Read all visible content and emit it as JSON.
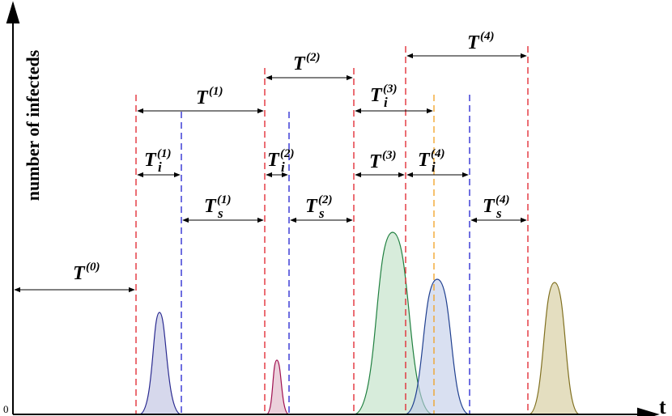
{
  "axis": {
    "y_label": "number of infecteds",
    "x_label": "t",
    "origin": "0"
  },
  "labels": [
    {
      "base": "T",
      "sup": "(0)"
    },
    {
      "base": "T",
      "sup": "(1)"
    },
    {
      "base": "T",
      "sub": "i",
      "sup": "(1)"
    },
    {
      "base": "T",
      "sub": "s",
      "sup": "(1)"
    },
    {
      "base": "T",
      "sup": "(2)"
    },
    {
      "base": "T",
      "sub": "i",
      "sup": "(2)"
    },
    {
      "base": "T",
      "sub": "s",
      "sup": "(2)"
    },
    {
      "base": "T",
      "sub": "i",
      "sup": "(3)"
    },
    {
      "base": "T",
      "sup": "(3)"
    },
    {
      "base": "T",
      "sub": "i",
      "sup": "(4)"
    },
    {
      "base": "T",
      "sup": "(4)"
    },
    {
      "base": "T",
      "sub": "s",
      "sup": "(4)"
    }
  ]
}
